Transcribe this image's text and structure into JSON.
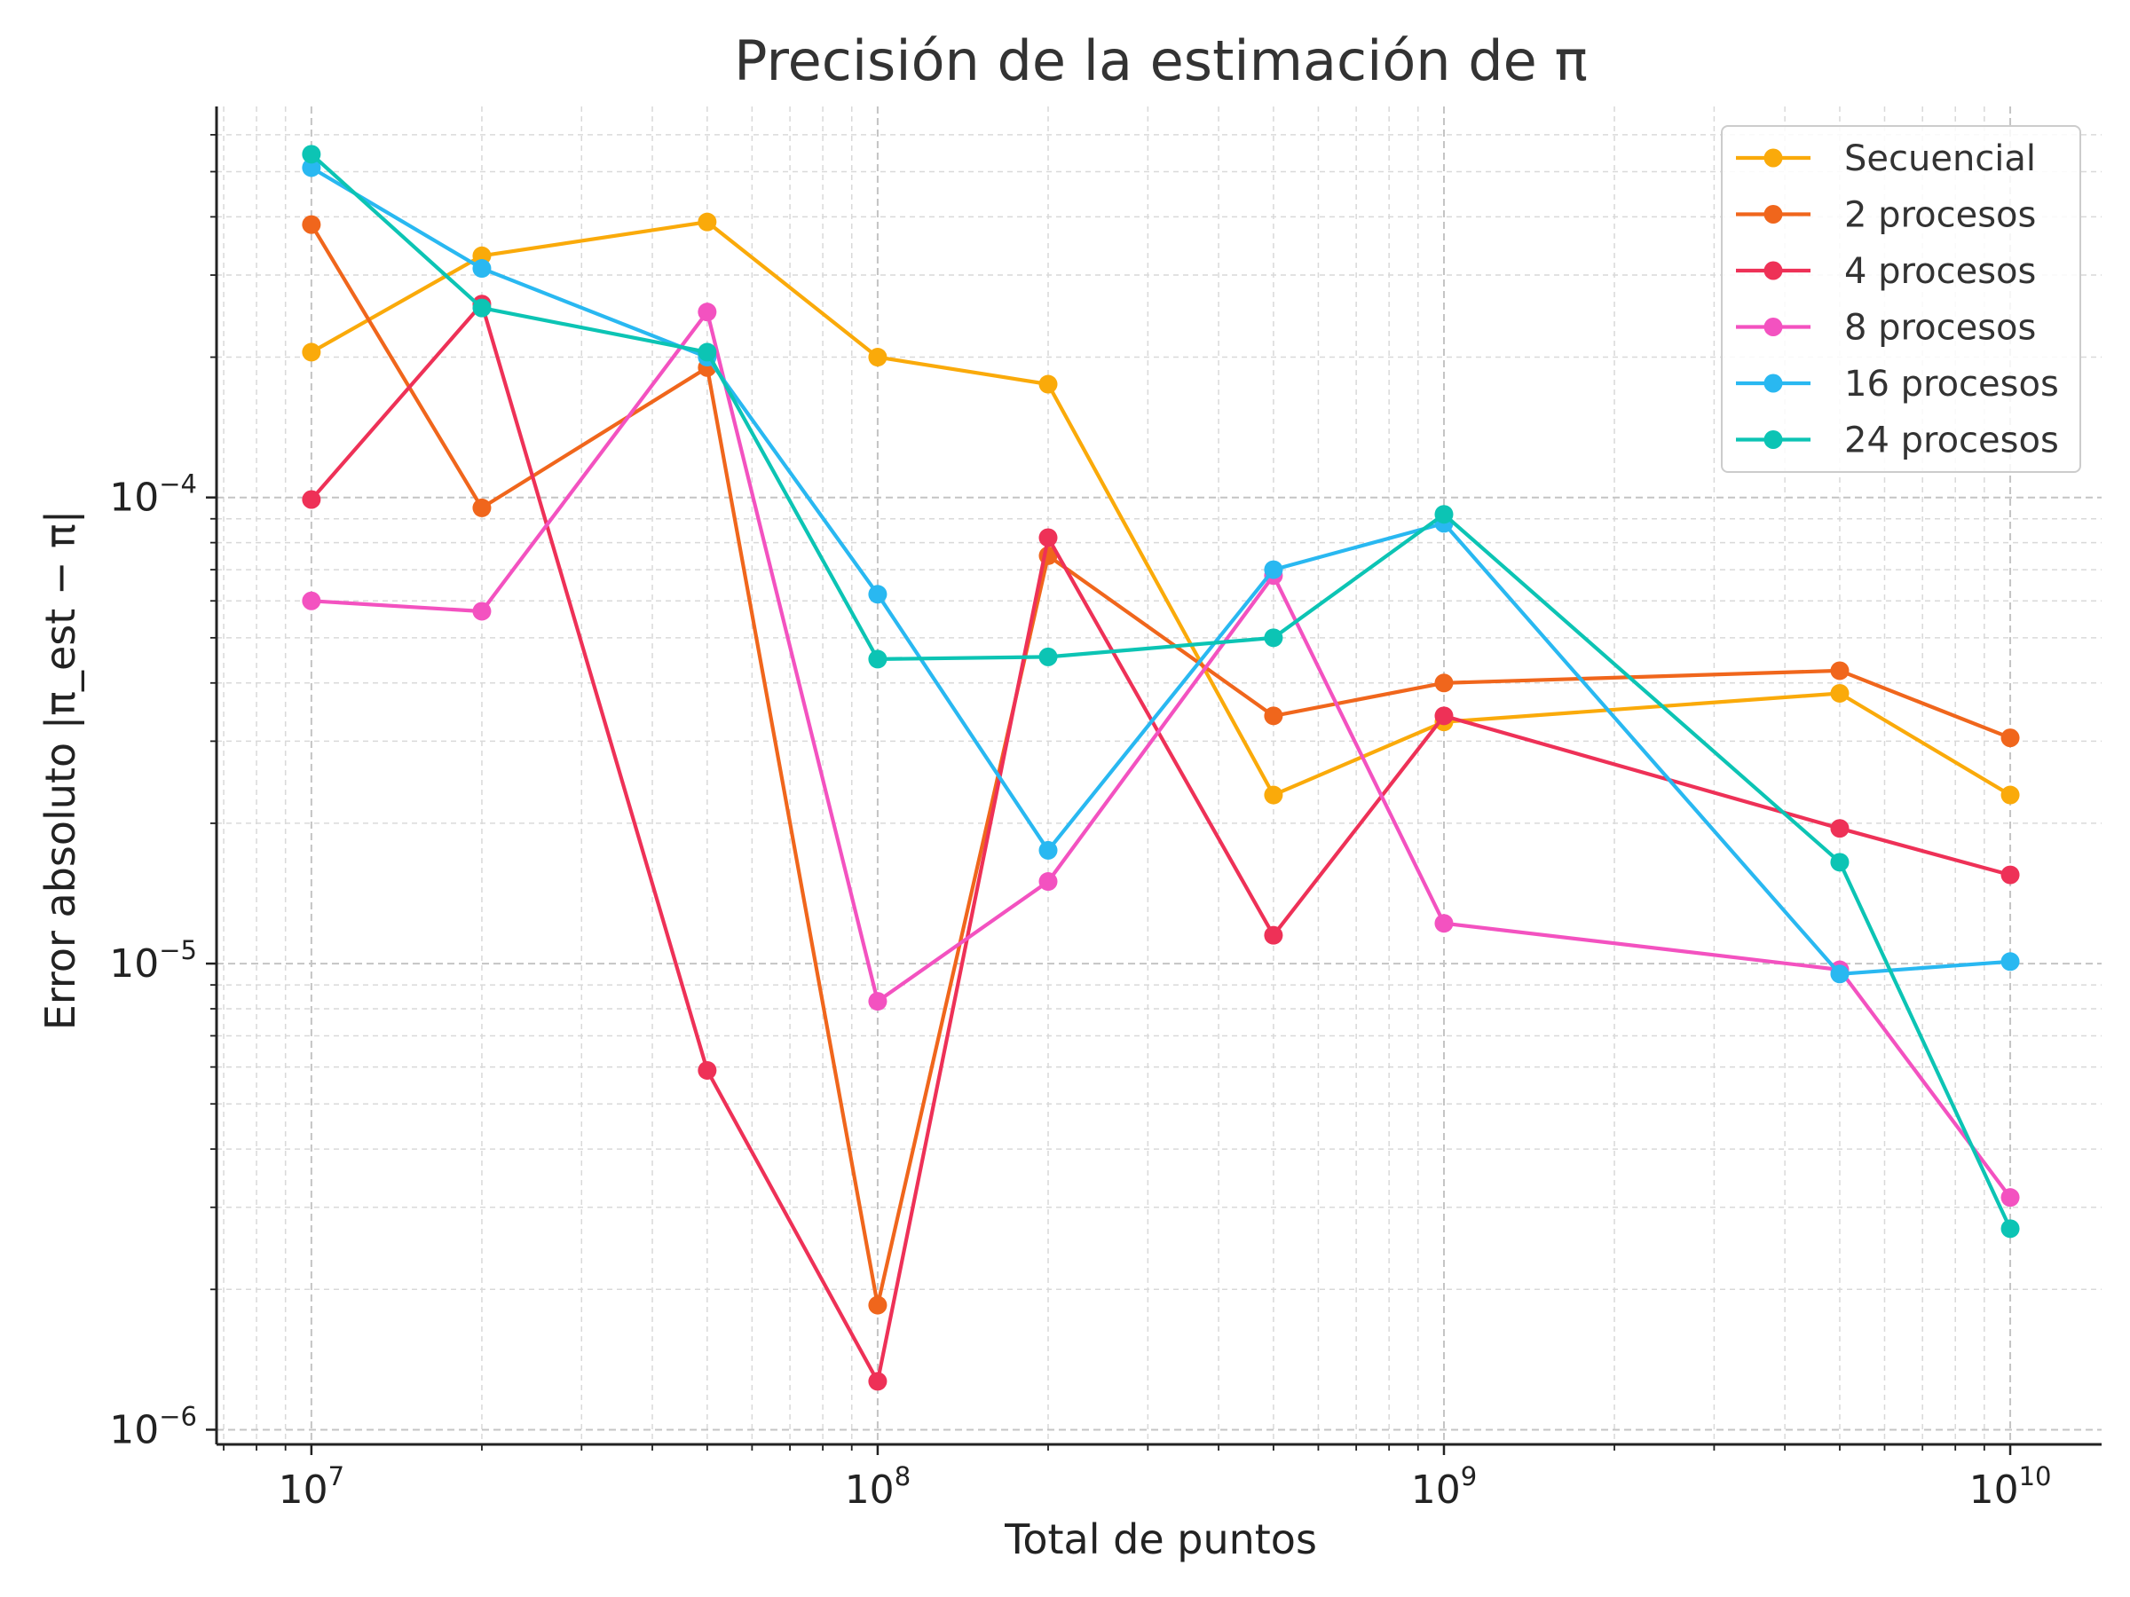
{
  "chart_data": {
    "type": "line",
    "title": "Precisión de la estimación de π",
    "xlabel": "Total de puntos",
    "ylabel": "Error absoluto |π_est − π|",
    "xscale": "log",
    "yscale": "log",
    "xlim": [
      6800000.0,
      14500000000.0
    ],
    "ylim": [
      9.3e-07,
      0.00069
    ],
    "grid": true,
    "legend_position": "top-right",
    "x_ticks": [
      {
        "base": "10",
        "exp": "7",
        "value": 10000000.0
      },
      {
        "base": "10",
        "exp": "8",
        "value": 100000000.0
      },
      {
        "base": "10",
        "exp": "9",
        "value": 1000000000.0
      },
      {
        "base": "10",
        "exp": "10",
        "value": 10000000000.0
      }
    ],
    "y_ticks": [
      {
        "base": "10",
        "exp": "−6",
        "value": 1e-06
      },
      {
        "base": "10",
        "exp": "−5",
        "value": 1e-05
      },
      {
        "base": "10",
        "exp": "−4",
        "value": 0.0001
      }
    ],
    "x": [
      10000000.0,
      20000000.0,
      50000000.0,
      100000000.0,
      200000000.0,
      500000000.0,
      1000000000.0,
      5000000000.0,
      10000000000.0
    ],
    "series": [
      {
        "name": "Secuencial",
        "color": "#FAAA0A",
        "values": [
          0.000205,
          0.00033,
          0.00039,
          0.0002,
          0.000175,
          2.3e-05,
          3.3e-05,
          3.8e-05,
          2.3e-05
        ]
      },
      {
        "name": "2 procesos",
        "color": "#F0661C",
        "values": [
          0.000385,
          9.5e-05,
          0.00019,
          1.85e-06,
          7.5e-05,
          3.4e-05,
          4e-05,
          4.25e-05,
          3.05e-05
        ]
      },
      {
        "name": "4 procesos",
        "color": "#EE3157",
        "values": [
          9.9e-05,
          0.00026,
          5.9e-06,
          1.27e-06,
          8.2e-05,
          1.15e-05,
          3.4e-05,
          1.95e-05,
          1.55e-05
        ]
      },
      {
        "name": "8 procesos",
        "color": "#F352C0",
        "values": [
          6e-05,
          5.7e-05,
          0.00025,
          8.3e-06,
          1.5e-05,
          6.8e-05,
          1.22e-05,
          9.7e-06,
          3.15e-06
        ]
      },
      {
        "name": "16 procesos",
        "color": "#29B8F1",
        "values": [
          0.00051,
          0.00031,
          0.0002,
          6.2e-05,
          1.75e-05,
          7e-05,
          8.8e-05,
          9.5e-06,
          1.01e-05
        ]
      },
      {
        "name": "24 procesos",
        "color": "#0CC4B4",
        "values": [
          0.000545,
          0.000255,
          0.000205,
          4.5e-05,
          4.55e-05,
          5e-05,
          9.2e-05,
          1.65e-05,
          2.7e-06
        ]
      }
    ]
  }
}
